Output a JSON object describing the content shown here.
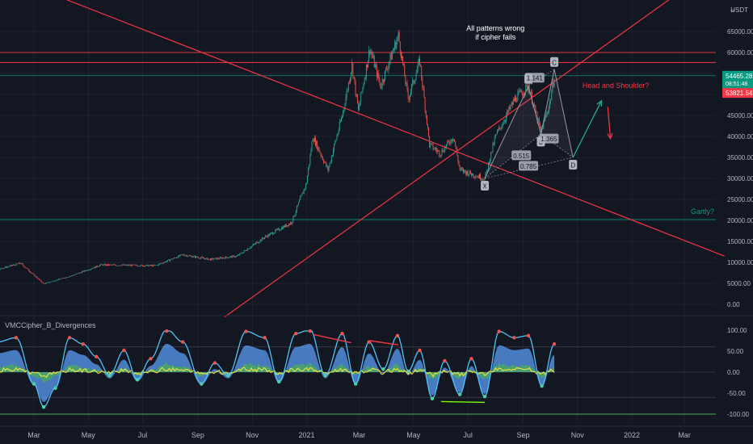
{
  "currency_label": "USDT",
  "currency_icon": "lock-icon",
  "indicator_title": "VMCCipher_B_Divergences",
  "colors": {
    "background": "#131722",
    "grid": "#2a2e39",
    "text": "#b2b5be",
    "up_candle": "#26a69a",
    "down_candle": "#ef5350",
    "trendline": "#f23645",
    "level_teal": "#089981",
    "pattern_gray": "#9598a1",
    "arrow_teal": "#22ab94",
    "arrow_red": "#f23645",
    "wave_blue": "#5b9cf6",
    "wave_light": "#4fc3f7",
    "money_flow_green": "#4caf50",
    "rsi_yellow": "#ffeb3b",
    "badge_current": "#089981",
    "badge_prev": "#f23645"
  },
  "price_axis": {
    "ticks": [
      {
        "value": 65000,
        "label": "65000.00"
      },
      {
        "value": 60000,
        "label": "60000.00"
      },
      {
        "value": 55000,
        "label": "55000.00"
      },
      {
        "value": 50000,
        "label": "50000.00"
      },
      {
        "value": 45000,
        "label": "45000.00"
      },
      {
        "value": 40000,
        "label": "40000.00"
      },
      {
        "value": 35000,
        "label": "35000.00"
      },
      {
        "value": 30000,
        "label": "30000.00"
      },
      {
        "value": 25000,
        "label": "25000.00"
      },
      {
        "value": 20000,
        "label": "20000.00"
      },
      {
        "value": 15000,
        "label": "15000.00"
      },
      {
        "value": 10000,
        "label": "10000.00"
      },
      {
        "value": 5000,
        "label": "5000.00"
      },
      {
        "value": 0,
        "label": "0.00"
      }
    ],
    "current_price": {
      "value": 54465.28,
      "label": "54465.28",
      "timer": "08:51:48"
    },
    "prev_close": {
      "value": 53821.54,
      "label": "53821.54"
    }
  },
  "osc_axis": {
    "ticks": [
      {
        "value": 100,
        "label": "100.00"
      },
      {
        "value": 50,
        "label": "50.00"
      },
      {
        "value": 0,
        "label": "0.00"
      },
      {
        "value": -50,
        "label": "-50.00"
      },
      {
        "value": -100,
        "label": "-100.00"
      }
    ]
  },
  "time_axis": {
    "ticks": [
      {
        "date": "2020-03-01",
        "label": "Mar"
      },
      {
        "date": "2020-05-01",
        "label": "May"
      },
      {
        "date": "2020-07-01",
        "label": "Jul"
      },
      {
        "date": "2020-09-01",
        "label": "Sep"
      },
      {
        "date": "2020-11-01",
        "label": "Nov"
      },
      {
        "date": "2021-01-01",
        "label": "2021"
      },
      {
        "date": "2021-03-01",
        "label": "Mar"
      },
      {
        "date": "2021-05-01",
        "label": "May"
      },
      {
        "date": "2021-07-01",
        "label": "Jul"
      },
      {
        "date": "2021-09-01",
        "label": "Sep"
      },
      {
        "date": "2021-11-01",
        "label": "Nov"
      },
      {
        "date": "2022-01-01",
        "label": "2022"
      },
      {
        "date": "2022-03-01",
        "label": "Mar"
      }
    ]
  },
  "chart_data": {
    "type": "candlestick",
    "symbol_quote": "USDT",
    "x_range": [
      "2019-12-01",
      "2022-04-15"
    ],
    "y_range": [
      -2000,
      68000
    ],
    "close_series": [
      {
        "date": "2020-01-01",
        "close": 7200
      },
      {
        "date": "2020-02-15",
        "close": 9800
      },
      {
        "date": "2020-03-12",
        "close": 4900
      },
      {
        "date": "2020-04-15",
        "close": 7000
      },
      {
        "date": "2020-05-15",
        "close": 9400
      },
      {
        "date": "2020-06-15",
        "close": 9300
      },
      {
        "date": "2020-07-15",
        "close": 9200
      },
      {
        "date": "2020-08-15",
        "close": 11800
      },
      {
        "date": "2020-09-15",
        "close": 10700
      },
      {
        "date": "2020-10-15",
        "close": 11500
      },
      {
        "date": "2020-11-15",
        "close": 16000
      },
      {
        "date": "2020-12-15",
        "close": 19500
      },
      {
        "date": "2021-01-01",
        "close": 29000
      },
      {
        "date": "2021-01-08",
        "close": 40000
      },
      {
        "date": "2021-01-25",
        "close": 32000
      },
      {
        "date": "2021-02-10",
        "close": 45000
      },
      {
        "date": "2021-02-21",
        "close": 57000
      },
      {
        "date": "2021-02-28",
        "close": 46000
      },
      {
        "date": "2021-03-13",
        "close": 61000
      },
      {
        "date": "2021-03-25",
        "close": 52000
      },
      {
        "date": "2021-04-14",
        "close": 64000
      },
      {
        "date": "2021-04-25",
        "close": 49000
      },
      {
        "date": "2021-05-08",
        "close": 58000
      },
      {
        "date": "2021-05-19",
        "close": 38000
      },
      {
        "date": "2021-05-31",
        "close": 36000
      },
      {
        "date": "2021-06-15",
        "close": 40000
      },
      {
        "date": "2021-06-22",
        "close": 32000
      },
      {
        "date": "2021-07-20",
        "close": 30000
      },
      {
        "date": "2021-08-01",
        "close": 40000
      },
      {
        "date": "2021-08-23",
        "close": 49000
      },
      {
        "date": "2021-09-07",
        "close": 52000
      },
      {
        "date": "2021-09-21",
        "close": 41000
      },
      {
        "date": "2021-10-01",
        "close": 48000
      },
      {
        "date": "2021-10-06",
        "close": 54465.28
      }
    ],
    "horizontal_levels": [
      {
        "value": 60000,
        "color": "red"
      },
      {
        "value": 57600,
        "color": "red"
      },
      {
        "value": 54465.28,
        "color": "teal"
      },
      {
        "value": 20200,
        "color": "teal",
        "label": "Gartly?"
      }
    ],
    "trendlines": [
      {
        "p1": [
          "2020-02-01",
          78000
        ],
        "p2": [
          "2022-04-15",
          11500
        ]
      },
      {
        "p1": [
          "2020-10-01",
          -3000
        ],
        "p2": [
          "2022-04-15",
          82000
        ]
      }
    ],
    "harmonic_pattern": {
      "points": [
        {
          "name": "X",
          "date": "2021-07-20",
          "value": 30000
        },
        {
          "name": "A",
          "date": "2021-09-07",
          "value": 52000
        },
        {
          "name": "B",
          "date": "2021-09-21",
          "value": 40500
        },
        {
          "name": "C",
          "date": "2021-10-06",
          "value": 56000
        },
        {
          "name": "D",
          "date": "2021-10-27",
          "value": 35000
        }
      ],
      "ratios": [
        {
          "label": "1.141",
          "date": "2021-09-14",
          "value": 54000
        },
        {
          "label": "1.365",
          "date": "2021-09-30",
          "value": 39500
        },
        {
          "label": "0.515",
          "date": "2021-08-30",
          "value": 35500
        },
        {
          "label": "0.785",
          "date": "2021-09-07",
          "value": 33000
        }
      ]
    },
    "annotations": [
      {
        "text": "All patterns wrong",
        "date": "2021-08-01",
        "value": 65200
      },
      {
        "text": "if cipher fails",
        "date": "2021-08-01",
        "value": 63100
      },
      {
        "text": "Head and Shoulder?",
        "date": "2021-12-14",
        "value": 51500
      },
      {
        "text": "Gartly?",
        "date": "2022-04-01",
        "value": 21500
      }
    ],
    "projection_arrows": [
      {
        "from": [
          "2021-10-27",
          35000
        ],
        "to": [
          "2021-11-28",
          48500
        ],
        "color": "teal"
      },
      {
        "from": [
          "2021-12-05",
          47000
        ],
        "to": [
          "2021-12-08",
          39500
        ],
        "color": "red"
      }
    ]
  },
  "oscillator_data": {
    "name": "VMCCipher_B_Divergences",
    "y_range": [
      -110,
      110
    ],
    "wave_series": [
      {
        "date": "2020-01-01",
        "value": 30
      },
      {
        "date": "2020-01-20",
        "value": 60
      },
      {
        "date": "2020-02-10",
        "value": 70
      },
      {
        "date": "2020-03-01",
        "value": -40
      },
      {
        "date": "2020-03-12",
        "value": -95
      },
      {
        "date": "2020-03-25",
        "value": -50
      },
      {
        "date": "2020-04-10",
        "value": 70
      },
      {
        "date": "2020-04-25",
        "value": 55
      },
      {
        "date": "2020-05-10",
        "value": 25
      },
      {
        "date": "2020-05-25",
        "value": -20
      },
      {
        "date": "2020-06-10",
        "value": 40
      },
      {
        "date": "2020-06-25",
        "value": -30
      },
      {
        "date": "2020-07-10",
        "value": 20
      },
      {
        "date": "2020-07-28",
        "value": 90
      },
      {
        "date": "2020-08-15",
        "value": 60
      },
      {
        "date": "2020-09-05",
        "value": -40
      },
      {
        "date": "2020-09-20",
        "value": 10
      },
      {
        "date": "2020-10-05",
        "value": -20
      },
      {
        "date": "2020-10-25",
        "value": 85
      },
      {
        "date": "2020-11-15",
        "value": 70
      },
      {
        "date": "2020-12-01",
        "value": -35
      },
      {
        "date": "2020-12-20",
        "value": 80
      },
      {
        "date": "2021-01-05",
        "value": 90
      },
      {
        "date": "2021-01-22",
        "value": -20
      },
      {
        "date": "2021-02-10",
        "value": 80
      },
      {
        "date": "2021-02-25",
        "value": -40
      },
      {
        "date": "2021-03-12",
        "value": 60
      },
      {
        "date": "2021-03-28",
        "value": -5
      },
      {
        "date": "2021-04-13",
        "value": 75
      },
      {
        "date": "2021-04-25",
        "value": -10
      },
      {
        "date": "2021-05-08",
        "value": 40
      },
      {
        "date": "2021-05-22",
        "value": -75
      },
      {
        "date": "2021-06-05",
        "value": 15
      },
      {
        "date": "2021-06-22",
        "value": -65
      },
      {
        "date": "2021-07-05",
        "value": 20
      },
      {
        "date": "2021-07-20",
        "value": -70
      },
      {
        "date": "2021-08-05",
        "value": 85
      },
      {
        "date": "2021-08-22",
        "value": 70
      },
      {
        "date": "2021-09-07",
        "value": 75
      },
      {
        "date": "2021-09-22",
        "value": -45
      },
      {
        "date": "2021-10-06",
        "value": 55
      }
    ],
    "divergence_lines": [
      {
        "from": [
          "2021-01-08",
          90
        ],
        "to": [
          "2021-02-20",
          70
        ],
        "color": "red"
      },
      {
        "from": [
          "2021-03-13",
          75
        ],
        "to": [
          "2021-04-14",
          65
        ],
        "color": "red"
      },
      {
        "from": [
          "2021-06-01",
          -70
        ],
        "to": [
          "2021-07-20",
          -72
        ],
        "color": "green"
      }
    ],
    "reference_levels": [
      60,
      0,
      -60
    ]
  }
}
